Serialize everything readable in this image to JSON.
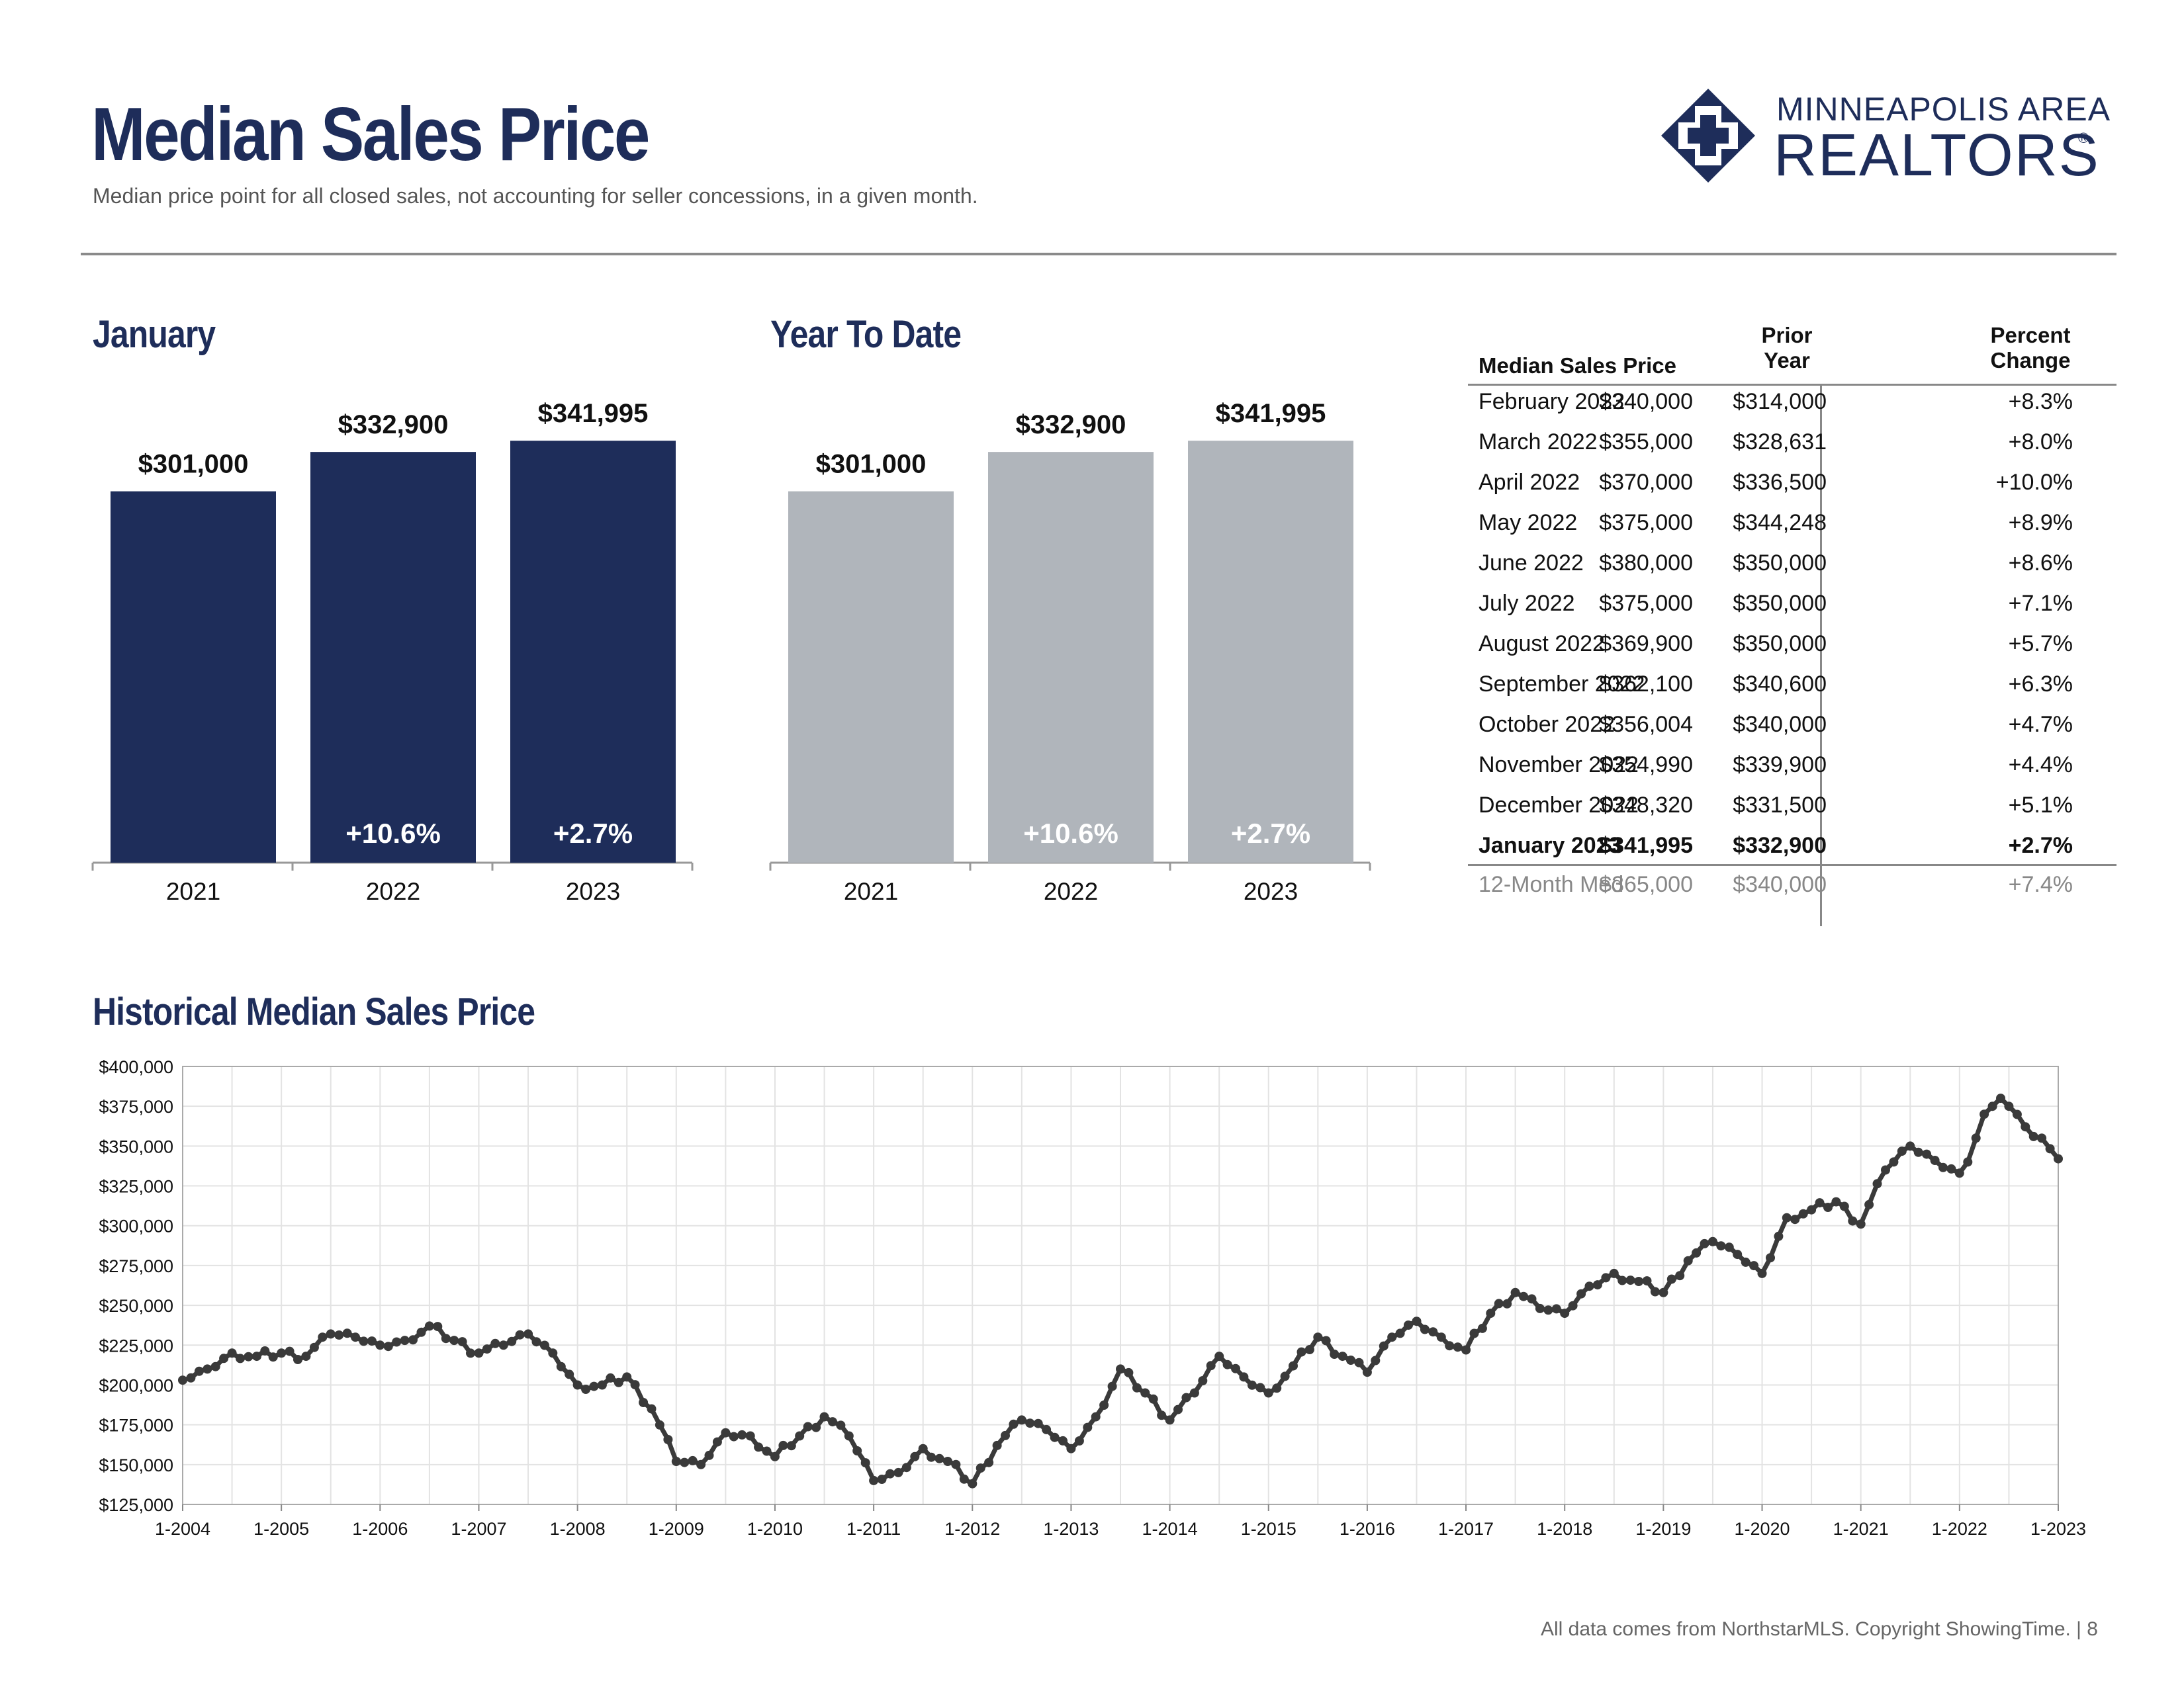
{
  "header": {
    "title": "Median Sales Price",
    "subtitle": "Median price point for all closed sales, not accounting for seller concessions, in a given month.",
    "logo_line1": "MINNEAPOLIS AREA",
    "logo_line2": "REALTORS",
    "logo_mark": "®"
  },
  "colors": {
    "navy": "#1e2d5a",
    "gray_bar": "#b0b5bb",
    "line": "#3a3a3a"
  },
  "sections": {
    "january_title": "January",
    "ytd_title": "Year To Date",
    "historical_title": "Historical Median Sales Price"
  },
  "table": {
    "header_label": "Median Sales Price",
    "header_prior_1": "Prior",
    "header_prior_2": "Year",
    "header_pct_1": "Percent",
    "header_pct_2": "Change",
    "rows": [
      {
        "label": "February 2022",
        "value": "$340,000",
        "prior": "$314,000",
        "change": "+8.3%"
      },
      {
        "label": "March 2022",
        "value": "$355,000",
        "prior": "$328,631",
        "change": "+8.0%"
      },
      {
        "label": "April 2022",
        "value": "$370,000",
        "prior": "$336,500",
        "change": "+10.0%"
      },
      {
        "label": "May 2022",
        "value": "$375,000",
        "prior": "$344,248",
        "change": "+8.9%"
      },
      {
        "label": "June 2022",
        "value": "$380,000",
        "prior": "$350,000",
        "change": "+8.6%"
      },
      {
        "label": "July 2022",
        "value": "$375,000",
        "prior": "$350,000",
        "change": "+7.1%"
      },
      {
        "label": "August 2022",
        "value": "$369,900",
        "prior": "$350,000",
        "change": "+5.7%"
      },
      {
        "label": "September 2022",
        "value": "$362,100",
        "prior": "$340,600",
        "change": "+6.3%"
      },
      {
        "label": "October 2022",
        "value": "$356,004",
        "prior": "$340,000",
        "change": "+4.7%"
      },
      {
        "label": "November 2022",
        "value": "$354,990",
        "prior": "$339,900",
        "change": "+4.4%"
      },
      {
        "label": "December 2022",
        "value": "$348,320",
        "prior": "$331,500",
        "change": "+5.1%"
      },
      {
        "label": "January 2023",
        "value": "$341,995",
        "prior": "$332,900",
        "change": "+2.7%",
        "bold": true
      }
    ],
    "summary": {
      "label": "12-Month Med",
      "value": "$365,000",
      "prior": "$340,000",
      "change": "+7.4%"
    }
  },
  "footer": {
    "text": "All data comes from NorthstarMLS. Copyright ShowingTime.  |  8"
  },
  "chart_data": [
    {
      "type": "bar",
      "title": "January",
      "categories": [
        "2021",
        "2022",
        "2023"
      ],
      "values": [
        301000,
        332900,
        341995
      ],
      "value_labels": [
        "$301,000",
        "$332,900",
        "$341,995"
      ],
      "change_labels": [
        "",
        "+10.6%",
        "+2.7%"
      ],
      "color": "#1e2d5a"
    },
    {
      "type": "bar",
      "title": "Year To Date",
      "categories": [
        "2021",
        "2022",
        "2023"
      ],
      "values": [
        301000,
        332900,
        341995
      ],
      "value_labels": [
        "$301,000",
        "$332,900",
        "$341,995"
      ],
      "change_labels": [
        "",
        "+10.6%",
        "+2.7%"
      ],
      "color": "#b0b5bb"
    },
    {
      "type": "line",
      "title": "Historical Median Sales Price",
      "ylim": [
        125000,
        400000
      ],
      "y_ticks": [
        400000,
        375000,
        350000,
        325000,
        300000,
        275000,
        250000,
        225000,
        200000,
        175000,
        150000,
        125000
      ],
      "y_tick_labels": [
        "$400,000",
        "$375,000",
        "$350,000",
        "$325,000",
        "$300,000",
        "$275,000",
        "$250,000",
        "$225,000",
        "$200,000",
        "$175,000",
        "$150,000",
        "$125,000"
      ],
      "x_tick_labels": [
        "1-2004",
        "1-2005",
        "1-2006",
        "1-2007",
        "1-2008",
        "1-2009",
        "1-2010",
        "1-2011",
        "1-2012",
        "1-2013",
        "1-2014",
        "1-2015",
        "1-2016",
        "1-2017",
        "1-2018",
        "1-2019",
        "1-2020",
        "1-2021",
        "1-2022",
        "1-2023"
      ],
      "grid": true,
      "anchors": [
        [
          "2004-01",
          203000
        ],
        [
          "2004-04",
          210000
        ],
        [
          "2004-07",
          220000
        ],
        [
          "2004-10",
          218000
        ],
        [
          "2005-01",
          220000
        ],
        [
          "2005-04",
          218000
        ],
        [
          "2005-07",
          232000
        ],
        [
          "2005-10",
          230000
        ],
        [
          "2006-01",
          225000
        ],
        [
          "2006-04",
          228000
        ],
        [
          "2006-07",
          237000
        ],
        [
          "2006-10",
          228000
        ],
        [
          "2007-01",
          220000
        ],
        [
          "2007-04",
          225000
        ],
        [
          "2007-07",
          232000
        ],
        [
          "2007-10",
          220000
        ],
        [
          "2008-01",
          200000
        ],
        [
          "2008-04",
          200000
        ],
        [
          "2008-07",
          205000
        ],
        [
          "2008-10",
          185000
        ],
        [
          "2009-01",
          152000
        ],
        [
          "2009-04",
          150000
        ],
        [
          "2009-07",
          170000
        ],
        [
          "2009-10",
          168000
        ],
        [
          "2010-01",
          155000
        ],
        [
          "2010-04",
          168000
        ],
        [
          "2010-07",
          180000
        ],
        [
          "2010-10",
          168000
        ],
        [
          "2011-01",
          140000
        ],
        [
          "2011-04",
          145000
        ],
        [
          "2011-07",
          160000
        ],
        [
          "2011-10",
          152000
        ],
        [
          "2012-01",
          138000
        ],
        [
          "2012-04",
          162000
        ],
        [
          "2012-07",
          178000
        ],
        [
          "2012-10",
          172000
        ],
        [
          "2013-01",
          160000
        ],
        [
          "2013-04",
          180000
        ],
        [
          "2013-07",
          210000
        ],
        [
          "2013-10",
          195000
        ],
        [
          "2014-01",
          178000
        ],
        [
          "2014-04",
          195000
        ],
        [
          "2014-07",
          218000
        ],
        [
          "2014-10",
          205000
        ],
        [
          "2015-01",
          195000
        ],
        [
          "2015-04",
          212000
        ],
        [
          "2015-07",
          230000
        ],
        [
          "2015-10",
          218000
        ],
        [
          "2016-01",
          208000
        ],
        [
          "2016-04",
          230000
        ],
        [
          "2016-07",
          240000
        ],
        [
          "2016-10",
          230000
        ],
        [
          "2017-01",
          222000
        ],
        [
          "2017-04",
          245000
        ],
        [
          "2017-07",
          258000
        ],
        [
          "2017-10",
          248000
        ],
        [
          "2018-01",
          245000
        ],
        [
          "2018-04",
          262000
        ],
        [
          "2018-07",
          270000
        ],
        [
          "2018-10",
          265000
        ],
        [
          "2019-01",
          258000
        ],
        [
          "2019-04",
          278000
        ],
        [
          "2019-07",
          290000
        ],
        [
          "2019-10",
          282000
        ],
        [
          "2020-01",
          270000
        ],
        [
          "2020-04",
          305000
        ],
        [
          "2020-07",
          310000
        ],
        [
          "2020-10",
          315000
        ],
        [
          "2021-01",
          301000
        ],
        [
          "2021-04",
          335000
        ],
        [
          "2021-07",
          350000
        ],
        [
          "2021-10",
          341000
        ],
        [
          "2022-01",
          333000
        ],
        [
          "2022-02",
          340000
        ],
        [
          "2022-03",
          355000
        ],
        [
          "2022-04",
          370000
        ],
        [
          "2022-05",
          375000
        ],
        [
          "2022-06",
          380000
        ],
        [
          "2022-07",
          375000
        ],
        [
          "2022-08",
          369900
        ],
        [
          "2022-09",
          362100
        ],
        [
          "2022-10",
          356004
        ],
        [
          "2022-11",
          354990
        ],
        [
          "2022-12",
          348320
        ],
        [
          "2023-01",
          341995
        ]
      ]
    }
  ]
}
